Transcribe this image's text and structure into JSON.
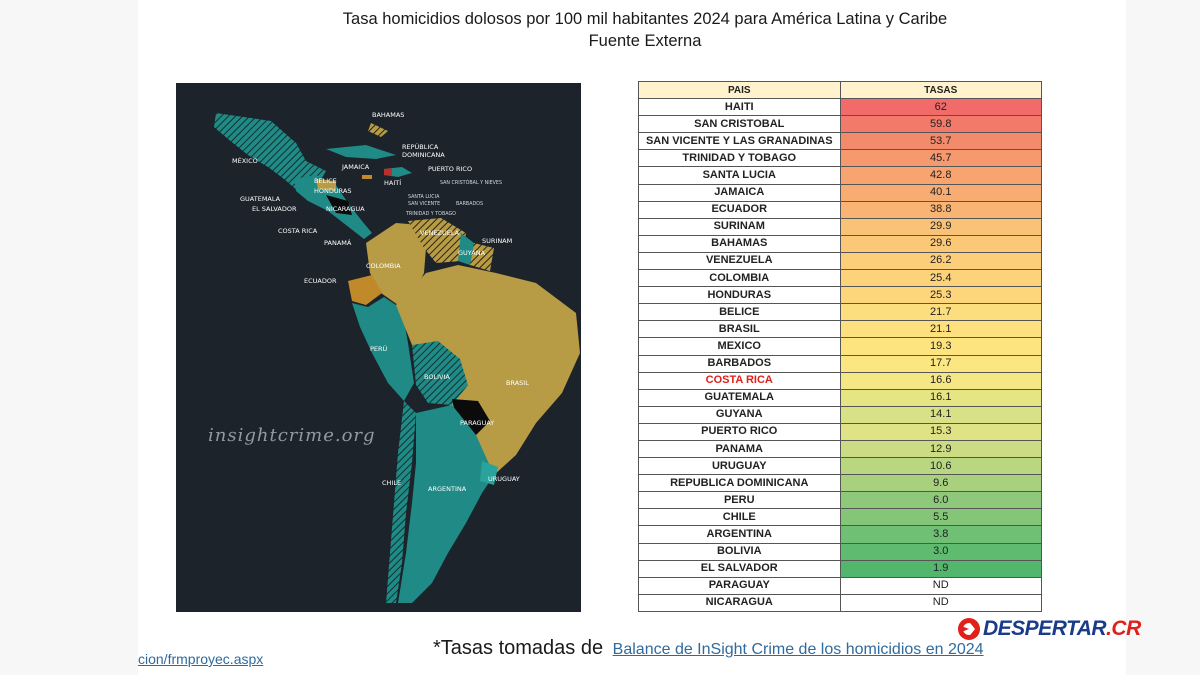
{
  "title": {
    "line1": "Tasa homicidios dolosos por 100 mil habitantes 2024 para América Latina y Caribe",
    "line2": "Fuente Externa"
  },
  "map": {
    "watermark": "insightcrime.org",
    "labels": {
      "bahamas": "BAHAMAS",
      "republica_dominicana_1": "REPÚBLICA",
      "republica_dominicana_2": "DOMINICANA",
      "mexico": "MÉXICO",
      "jamaica": "JAMAICA",
      "puerto_rico": "PUERTO RICO",
      "haiti": "HAITÍ",
      "san_cristobal": "SAN CRISTÓBAL Y NIEVES",
      "belice": "BELICE",
      "honduras": "HONDURAS",
      "santa_lucia": "SANTA LUCIA",
      "san_vicente": "SAN VICENTE",
      "barbados": "BARBADOS",
      "guatemala": "GUATEMALA",
      "el_salvador": "EL SALVADOR",
      "nicaragua": "NICARAGUA",
      "trinidad": "TRINIDAD Y TOBAGO",
      "costa_rica": "COSTA RICA",
      "venezuela": "VENEZUELA",
      "surinam": "SURINAM",
      "panama": "PANAMÁ",
      "guyana": "GUYANA",
      "colombia": "COLOMBIA",
      "ecuador": "ECUADOR",
      "peru": "PERÚ",
      "bolivia": "BOLIVIA",
      "brasil": "BRASIL",
      "paraguay": "PARAGUAY",
      "chile": "CHILE",
      "argentina": "ARGENTINA",
      "uruguay": "URUGUAY"
    },
    "colors": {
      "background": "#1c232b",
      "teal": "#1f8a86",
      "olive": "#b79b45",
      "brown": "#c08a2a",
      "black": "#0b0b0b"
    }
  },
  "table": {
    "headers": {
      "country": "PAIS",
      "rate": "TASAS"
    },
    "rows": [
      {
        "country": "HAITI",
        "rate": "62",
        "color": "#f26b6b"
      },
      {
        "country": "SAN CRISTOBAL",
        "rate": "59.8",
        "color": "#f37a6a"
      },
      {
        "country": "SAN VICENTE Y LAS GRANADINAS",
        "rate": "53.7",
        "color": "#f48a6c"
      },
      {
        "country": "TRINIDAD Y TOBAGO",
        "rate": "45.7",
        "color": "#f6996e"
      },
      {
        "country": "SANTA LUCIA",
        "rate": "42.8",
        "color": "#f7a470"
      },
      {
        "country": "JAMAICA",
        "rate": "40.1",
        "color": "#f8ac72"
      },
      {
        "country": "ECUADOR",
        "rate": "38.8",
        "color": "#f9b474"
      },
      {
        "country": "SURINAM",
        "rate": "29.9",
        "color": "#fac276"
      },
      {
        "country": "BAHAMAS",
        "rate": "29.6",
        "color": "#fbc878"
      },
      {
        "country": "VENEZUELA",
        "rate": "26.2",
        "color": "#fcce7a"
      },
      {
        "country": "COLOMBIA",
        "rate": "25.4",
        "color": "#fcd27b"
      },
      {
        "country": "HONDURAS",
        "rate": "25.3",
        "color": "#fdd67c"
      },
      {
        "country": "BELICE",
        "rate": "21.7",
        "color": "#fdde7e"
      },
      {
        "country": "BRASIL",
        "rate": "21.1",
        "color": "#fee07f"
      },
      {
        "country": "MEXICO",
        "rate": "19.3",
        "color": "#fee47f"
      },
      {
        "country": "BARBADOS",
        "rate": "17.7",
        "color": "#fbe681"
      },
      {
        "country": "COSTA RICA",
        "rate": "16.6",
        "color": "#f5e783",
        "highlight": true
      },
      {
        "country": "GUATEMALA",
        "rate": "16.1",
        "color": "#e6e584"
      },
      {
        "country": "GUYANA",
        "rate": "14.1",
        "color": "#d9e186"
      },
      {
        "country": "PUERTO RICO",
        "rate": "15.3",
        "color": "#dfe385"
      },
      {
        "country": "PANAMA",
        "rate": "12.9",
        "color": "#cbdc84"
      },
      {
        "country": "URUGUAY",
        "rate": "10.6",
        "color": "#b9d681"
      },
      {
        "country": "REPUBLICA DOMINICANA",
        "rate": "9.6",
        "color": "#a8d07d"
      },
      {
        "country": "PERU",
        "rate": "6.0",
        "color": "#8ec87a"
      },
      {
        "country": "CHILE",
        "rate": "5.5",
        "color": "#84c578"
      },
      {
        "country": "ARGENTINA",
        "rate": "3.8",
        "color": "#6fbf74"
      },
      {
        "country": "BOLIVIA",
        "rate": "3.0",
        "color": "#5fbb70"
      },
      {
        "country": "EL SALVADOR",
        "rate": "1.9",
        "color": "#52b76d"
      },
      {
        "country": "PARAGUAY",
        "rate": "ND",
        "color": "#ffffff"
      },
      {
        "country": "NICARAGUA",
        "rate": "ND",
        "color": "#ffffff"
      }
    ]
  },
  "footnote": {
    "prefix": "*Tasas tomadas de",
    "link": "Balance de InSight Crime de los homicidios en 2024"
  },
  "left_link": "cion/frmproyec.aspx",
  "logo": {
    "main": "DESPERTAR",
    "suffix": ".CR"
  }
}
